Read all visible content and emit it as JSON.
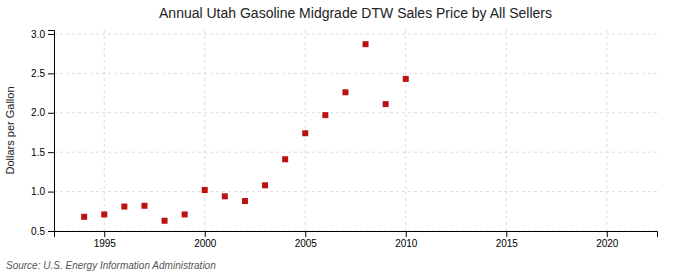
{
  "chart_data": {
    "type": "scatter",
    "title": "Annual Utah Gasoline Midgrade DTW Sales Price by All Sellers",
    "ylabel": "Dollars per Gallon",
    "annotations": [
      "Source: U.S. Energy Information Administration"
    ],
    "x": [
      1994,
      1995,
      1996,
      1997,
      1998,
      1999,
      2000,
      2001,
      2002,
      2003,
      2004,
      2005,
      2006,
      2007,
      2008,
      2009,
      2010
    ],
    "values": [
      0.68,
      0.71,
      0.81,
      0.82,
      0.63,
      0.71,
      1.02,
      0.94,
      0.88,
      1.08,
      1.41,
      1.74,
      1.97,
      2.26,
      2.87,
      2.11,
      2.43
    ],
    "color": "#bb1111",
    "marker": "square",
    "xlim": [
      1992.5,
      2022.5
    ],
    "xticks": [
      1995,
      2000,
      2005,
      2010,
      2015,
      2020
    ],
    "ylim": [
      0.5,
      3.05
    ],
    "yticks": [
      0.5,
      {
        "value": 1.0,
        "label": "1.0"
      },
      1.5,
      {
        "value": 2.0,
        "label": "2.0"
      },
      2.5,
      {
        "value": 3.0,
        "label": "3.0"
      }
    ],
    "grid": true
  }
}
